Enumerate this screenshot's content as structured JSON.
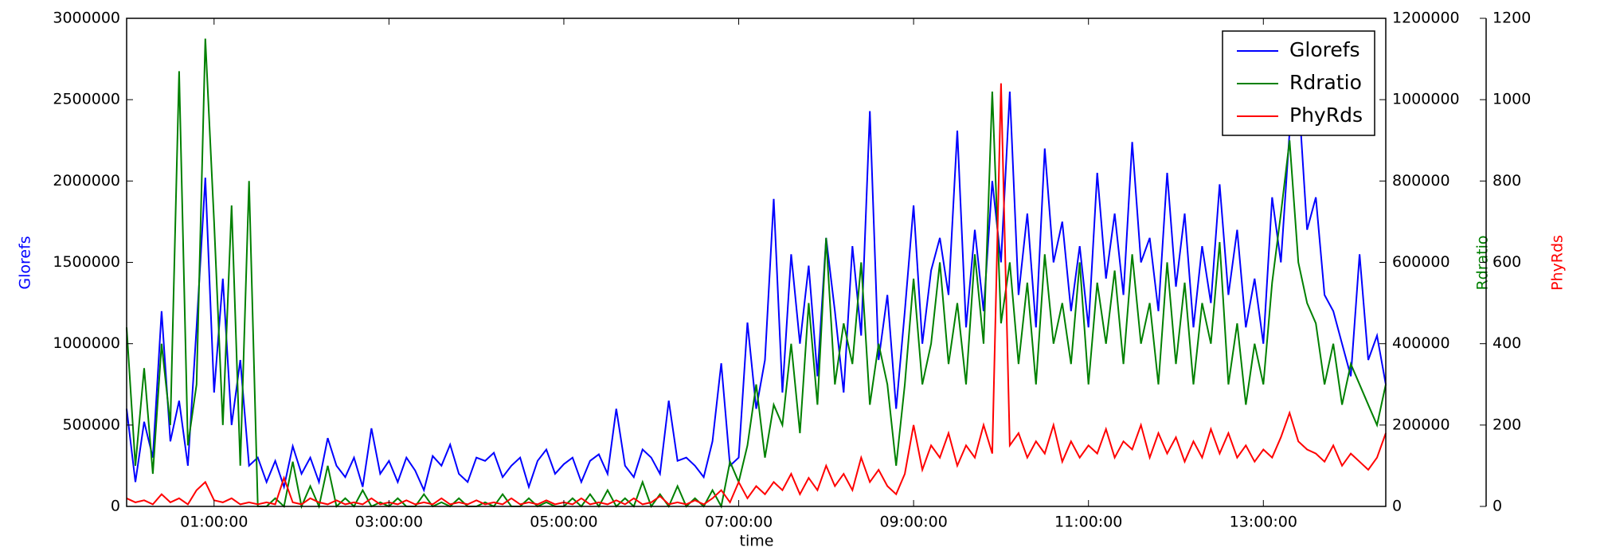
{
  "chart_data": {
    "type": "line",
    "xlabel": "time",
    "ylabel": "Glorefs",
    "y2label": "Rdratio",
    "y3label": "PhyRds",
    "legend": "upper right",
    "xlim": [
      0,
      14.4
    ],
    "xticks": [
      {
        "value": 1,
        "label": "01:00:00"
      },
      {
        "value": 3,
        "label": "03:00:00"
      },
      {
        "value": 5,
        "label": "05:00:00"
      },
      {
        "value": 7,
        "label": "07:00:00"
      },
      {
        "value": 9,
        "label": "09:00:00"
      },
      {
        "value": 11,
        "label": "11:00:00"
      },
      {
        "value": 13,
        "label": "13:00:00"
      }
    ],
    "ylim": [
      0,
      3000000
    ],
    "yticks": [
      0,
      500000,
      1000000,
      1500000,
      2000000,
      2500000,
      3000000
    ],
    "y2lim": [
      0,
      1200000
    ],
    "y2ticks": [
      0,
      200000,
      400000,
      600000,
      800000,
      1000000,
      1200000
    ],
    "y3lim": [
      0,
      1200
    ],
    "y3ticks": [
      0,
      200,
      400,
      600,
      800,
      1000,
      1200
    ],
    "x": [
      0,
      0.1,
      0.2,
      0.3,
      0.4,
      0.5,
      0.6,
      0.7,
      0.8,
      0.9,
      1,
      1.1,
      1.2,
      1.3,
      1.4,
      1.5,
      1.6,
      1.7,
      1.8,
      1.9,
      2,
      2.1,
      2.2,
      2.3,
      2.4,
      2.5,
      2.6,
      2.7,
      2.8,
      2.9,
      3,
      3.1,
      3.2,
      3.3,
      3.4,
      3.5,
      3.6,
      3.7,
      3.8,
      3.9,
      4,
      4.1,
      4.2,
      4.3,
      4.4,
      4.5,
      4.6,
      4.7,
      4.8,
      4.9,
      5,
      5.1,
      5.2,
      5.3,
      5.4,
      5.5,
      5.6,
      5.7,
      5.8,
      5.9,
      6,
      6.1,
      6.2,
      6.3,
      6.4,
      6.5,
      6.6,
      6.7,
      6.8,
      6.9,
      7,
      7.1,
      7.2,
      7.3,
      7.4,
      7.5,
      7.6,
      7.7,
      7.8,
      7.9,
      8,
      8.1,
      8.2,
      8.3,
      8.4,
      8.5,
      8.6,
      8.7,
      8.8,
      8.9,
      9,
      9.1,
      9.2,
      9.3,
      9.4,
      9.5,
      9.6,
      9.7,
      9.8,
      9.9,
      10,
      10.1,
      10.2,
      10.3,
      10.4,
      10.5,
      10.6,
      10.7,
      10.8,
      10.9,
      11,
      11.1,
      11.2,
      11.3,
      11.4,
      11.5,
      11.6,
      11.7,
      11.8,
      11.9,
      12,
      12.1,
      12.2,
      12.3,
      12.4,
      12.5,
      12.6,
      12.7,
      12.8,
      12.9,
      13,
      13.1,
      13.2,
      13.3,
      13.4,
      13.5,
      13.6,
      13.7,
      13.8,
      13.9,
      14,
      14.1,
      14.2,
      14.3,
      14.4
    ],
    "series": [
      {
        "name": "Glorefs",
        "color": "#0000ff",
        "axis": "y",
        "values": [
          600000,
          150000,
          520000,
          300000,
          1200000,
          400000,
          650000,
          250000,
          1100000,
          2020000,
          700000,
          1400000,
          500000,
          900000,
          250000,
          300000,
          150000,
          280000,
          120000,
          370000,
          200000,
          300000,
          150000,
          420000,
          250000,
          180000,
          300000,
          120000,
          480000,
          200000,
          280000,
          150000,
          300000,
          220000,
          100000,
          310000,
          250000,
          380000,
          200000,
          150000,
          300000,
          280000,
          330000,
          180000,
          250000,
          300000,
          120000,
          280000,
          350000,
          200000,
          260000,
          300000,
          150000,
          280000,
          320000,
          200000,
          600000,
          250000,
          180000,
          350000,
          300000,
          200000,
          650000,
          280000,
          300000,
          250000,
          180000,
          400000,
          880000,
          250000,
          300000,
          1130000,
          600000,
          900000,
          1890000,
          700000,
          1550000,
          1000000,
          1480000,
          800000,
          1650000,
          1200000,
          700000,
          1600000,
          1050000,
          2430000,
          900000,
          1300000,
          600000,
          1200000,
          1850000,
          1000000,
          1450000,
          1650000,
          1300000,
          2310000,
          1100000,
          1700000,
          1200000,
          2000000,
          1500000,
          2550000,
          1300000,
          1800000,
          1100000,
          2200000,
          1500000,
          1750000,
          1200000,
          1600000,
          1100000,
          2050000,
          1400000,
          1800000,
          1300000,
          2240000,
          1500000,
          1650000,
          1200000,
          2050000,
          1350000,
          1800000,
          1100000,
          1600000,
          1250000,
          1980000,
          1300000,
          1700000,
          1100000,
          1400000,
          1000000,
          1900000,
          1500000,
          2300000,
          2550000,
          1700000,
          1900000,
          1300000,
          1200000,
          1000000,
          800000,
          1550000,
          900000,
          1050000,
          750000
        ]
      },
      {
        "name": "Rdratio",
        "color": "#008000",
        "axis": "y2",
        "values": [
          440000,
          100000,
          340000,
          80000,
          400000,
          200000,
          1070000,
          150000,
          300000,
          1150000,
          700000,
          200000,
          740000,
          100000,
          800000,
          0,
          0,
          20000,
          0,
          110000,
          0,
          50000,
          0,
          100000,
          0,
          20000,
          0,
          40000,
          0,
          10000,
          0,
          20000,
          0,
          0,
          30000,
          0,
          10000,
          0,
          20000,
          0,
          0,
          10000,
          0,
          30000,
          0,
          0,
          20000,
          0,
          10000,
          0,
          0,
          20000,
          0,
          30000,
          0,
          40000,
          0,
          20000,
          0,
          60000,
          0,
          30000,
          0,
          50000,
          0,
          20000,
          0,
          40000,
          0,
          110000,
          60000,
          150000,
          300000,
          120000,
          250000,
          200000,
          400000,
          180000,
          500000,
          250000,
          660000,
          300000,
          450000,
          350000,
          600000,
          250000,
          400000,
          300000,
          100000,
          300000,
          560000,
          300000,
          400000,
          600000,
          350000,
          500000,
          300000,
          620000,
          400000,
          1020000,
          450000,
          600000,
          350000,
          550000,
          300000,
          620000,
          400000,
          500000,
          350000,
          600000,
          300000,
          550000,
          400000,
          580000,
          350000,
          620000,
          400000,
          500000,
          300000,
          600000,
          350000,
          550000,
          300000,
          500000,
          400000,
          650000,
          300000,
          450000,
          250000,
          400000,
          300000,
          550000,
          720000,
          900000,
          600000,
          500000,
          450000,
          300000,
          400000,
          250000,
          350000,
          300000,
          250000,
          200000,
          300000
        ]
      },
      {
        "name": "PhyRds",
        "color": "#ff0000",
        "axis": "y3",
        "values": [
          20,
          10,
          15,
          5,
          30,
          10,
          20,
          5,
          40,
          60,
          15,
          10,
          20,
          5,
          10,
          5,
          10,
          5,
          70,
          10,
          5,
          20,
          10,
          5,
          15,
          5,
          10,
          5,
          20,
          5,
          10,
          5,
          15,
          5,
          10,
          5,
          20,
          5,
          10,
          5,
          15,
          5,
          10,
          5,
          20,
          5,
          10,
          5,
          15,
          5,
          10,
          5,
          20,
          5,
          10,
          5,
          15,
          5,
          20,
          5,
          10,
          25,
          5,
          10,
          5,
          15,
          5,
          20,
          40,
          10,
          60,
          20,
          50,
          30,
          60,
          40,
          80,
          30,
          70,
          40,
          100,
          50,
          80,
          40,
          120,
          60,
          90,
          50,
          30,
          80,
          200,
          90,
          150,
          120,
          180,
          100,
          150,
          120,
          200,
          130,
          1040,
          150,
          180,
          120,
          160,
          130,
          200,
          110,
          160,
          120,
          150,
          130,
          190,
          120,
          160,
          140,
          200,
          120,
          180,
          130,
          170,
          110,
          160,
          120,
          190,
          130,
          180,
          120,
          150,
          110,
          140,
          120,
          170,
          230,
          160,
          140,
          130,
          110,
          150,
          100,
          130,
          110,
          90,
          120,
          180
        ]
      }
    ]
  }
}
